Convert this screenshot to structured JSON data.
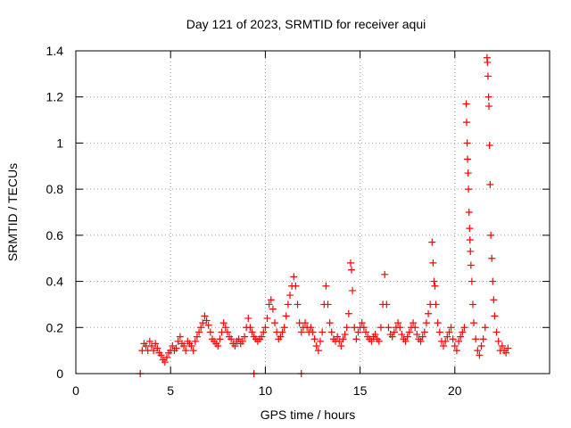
{
  "chart_data": {
    "type": "scatter",
    "title": "Day 121 of 2023, SRMTID for receiver aqui",
    "xlabel": "GPS time / hours",
    "ylabel": "SRMTID / TECUs",
    "xlim": [
      0,
      25
    ],
    "ylim": [
      0,
      1.4
    ],
    "xticks": [
      0,
      5,
      10,
      15,
      20
    ],
    "xtick_labels": [
      "0",
      "5",
      "10",
      "15",
      "20"
    ],
    "yticks": [
      0,
      0.2,
      0.4,
      0.6,
      0.8,
      1,
      1.2,
      1.4
    ],
    "ytick_labels": [
      "0",
      "0.2",
      "0.4",
      "0.6",
      "0.8",
      "1",
      "1.2",
      "1.4"
    ],
    "grid": true,
    "marker": "plus",
    "color": "#ff0000",
    "series": [
      {
        "name": "SRMTID",
        "points": [
          [
            3.4,
            0.0
          ],
          [
            9.4,
            0.0
          ],
          [
            11.9,
            0.0
          ],
          [
            3.5,
            0.1
          ],
          [
            3.6,
            0.13
          ],
          [
            3.7,
            0.12
          ],
          [
            3.8,
            0.1
          ],
          [
            3.9,
            0.14
          ],
          [
            4.0,
            0.12
          ],
          [
            4.1,
            0.1
          ],
          [
            4.2,
            0.13
          ],
          [
            4.3,
            0.11
          ],
          [
            4.4,
            0.09
          ],
          [
            4.5,
            0.08
          ],
          [
            4.6,
            0.06
          ],
          [
            4.7,
            0.05
          ],
          [
            4.8,
            0.07
          ],
          [
            4.9,
            0.09
          ],
          [
            5.0,
            0.1
          ],
          [
            5.1,
            0.12
          ],
          [
            5.2,
            0.1
          ],
          [
            5.3,
            0.11
          ],
          [
            5.4,
            0.14
          ],
          [
            5.5,
            0.16
          ],
          [
            5.6,
            0.13
          ],
          [
            5.7,
            0.12
          ],
          [
            5.8,
            0.1
          ],
          [
            5.9,
            0.14
          ],
          [
            6.0,
            0.13
          ],
          [
            6.1,
            0.12
          ],
          [
            6.2,
            0.1
          ],
          [
            6.3,
            0.14
          ],
          [
            6.4,
            0.16
          ],
          [
            6.5,
            0.18
          ],
          [
            6.6,
            0.2
          ],
          [
            6.7,
            0.22
          ],
          [
            6.8,
            0.25
          ],
          [
            6.9,
            0.23
          ],
          [
            7.0,
            0.21
          ],
          [
            7.1,
            0.18
          ],
          [
            7.2,
            0.15
          ],
          [
            7.3,
            0.14
          ],
          [
            7.4,
            0.13
          ],
          [
            7.5,
            0.12
          ],
          [
            7.6,
            0.15
          ],
          [
            7.7,
            0.18
          ],
          [
            7.8,
            0.22
          ],
          [
            7.9,
            0.2
          ],
          [
            8.0,
            0.18
          ],
          [
            8.1,
            0.16
          ],
          [
            8.2,
            0.15
          ],
          [
            8.3,
            0.13
          ],
          [
            8.4,
            0.12
          ],
          [
            8.5,
            0.14
          ],
          [
            8.6,
            0.15
          ],
          [
            8.7,
            0.13
          ],
          [
            8.8,
            0.14
          ],
          [
            8.9,
            0.16
          ],
          [
            9.0,
            0.2
          ],
          [
            9.1,
            0.24
          ],
          [
            9.2,
            0.2
          ],
          [
            9.3,
            0.18
          ],
          [
            9.4,
            0.16
          ],
          [
            9.5,
            0.15
          ],
          [
            9.6,
            0.14
          ],
          [
            9.7,
            0.15
          ],
          [
            9.8,
            0.16
          ],
          [
            9.9,
            0.18
          ],
          [
            10.0,
            0.2
          ],
          [
            10.1,
            0.24
          ],
          [
            10.2,
            0.3
          ],
          [
            10.3,
            0.32
          ],
          [
            10.4,
            0.28
          ],
          [
            10.5,
            0.22
          ],
          [
            10.6,
            0.18
          ],
          [
            10.7,
            0.15
          ],
          [
            10.8,
            0.16
          ],
          [
            10.9,
            0.18
          ],
          [
            11.0,
            0.2
          ],
          [
            11.1,
            0.25
          ],
          [
            11.2,
            0.3
          ],
          [
            11.3,
            0.34
          ],
          [
            11.4,
            0.38
          ],
          [
            11.5,
            0.42
          ],
          [
            11.6,
            0.38
          ],
          [
            11.7,
            0.3
          ],
          [
            11.8,
            0.22
          ],
          [
            11.9,
            0.18
          ],
          [
            12.0,
            0.2
          ],
          [
            12.1,
            0.22
          ],
          [
            12.2,
            0.2
          ],
          [
            12.3,
            0.18
          ],
          [
            12.4,
            0.2
          ],
          [
            12.5,
            0.18
          ],
          [
            12.6,
            0.15
          ],
          [
            12.7,
            0.12
          ],
          [
            12.8,
            0.1
          ],
          [
            12.9,
            0.14
          ],
          [
            13.0,
            0.18
          ],
          [
            13.1,
            0.3
          ],
          [
            13.2,
            0.38
          ],
          [
            13.3,
            0.3
          ],
          [
            13.4,
            0.22
          ],
          [
            13.5,
            0.18
          ],
          [
            13.6,
            0.15
          ],
          [
            13.7,
            0.14
          ],
          [
            13.8,
            0.16
          ],
          [
            13.9,
            0.14
          ],
          [
            14.0,
            0.12
          ],
          [
            14.1,
            0.15
          ],
          [
            14.2,
            0.17
          ],
          [
            14.3,
            0.2
          ],
          [
            14.4,
            0.26
          ],
          [
            14.5,
            0.48
          ],
          [
            14.55,
            0.45
          ],
          [
            14.6,
            0.36
          ],
          [
            14.7,
            0.2
          ],
          [
            14.8,
            0.15
          ],
          [
            14.9,
            0.18
          ],
          [
            15.0,
            0.2
          ],
          [
            15.1,
            0.22
          ],
          [
            15.2,
            0.2
          ],
          [
            15.3,
            0.18
          ],
          [
            15.4,
            0.16
          ],
          [
            15.5,
            0.15
          ],
          [
            15.6,
            0.14
          ],
          [
            15.7,
            0.16
          ],
          [
            15.8,
            0.17
          ],
          [
            15.9,
            0.15
          ],
          [
            16.0,
            0.14
          ],
          [
            16.1,
            0.2
          ],
          [
            16.2,
            0.3
          ],
          [
            16.3,
            0.43
          ],
          [
            16.4,
            0.3
          ],
          [
            16.5,
            0.2
          ],
          [
            16.6,
            0.17
          ],
          [
            16.7,
            0.16
          ],
          [
            16.8,
            0.18
          ],
          [
            16.9,
            0.2
          ],
          [
            17.0,
            0.22
          ],
          [
            17.1,
            0.2
          ],
          [
            17.2,
            0.17
          ],
          [
            17.3,
            0.15
          ],
          [
            17.4,
            0.14
          ],
          [
            17.5,
            0.16
          ],
          [
            17.6,
            0.18
          ],
          [
            17.7,
            0.2
          ],
          [
            17.8,
            0.22
          ],
          [
            17.9,
            0.2
          ],
          [
            18.0,
            0.17
          ],
          [
            18.1,
            0.15
          ],
          [
            18.2,
            0.14
          ],
          [
            18.3,
            0.16
          ],
          [
            18.4,
            0.18
          ],
          [
            18.5,
            0.22
          ],
          [
            18.6,
            0.26
          ],
          [
            18.7,
            0.3
          ],
          [
            18.8,
            0.57
          ],
          [
            18.85,
            0.48
          ],
          [
            18.9,
            0.4
          ],
          [
            18.95,
            0.38
          ],
          [
            19.0,
            0.3
          ],
          [
            19.1,
            0.22
          ],
          [
            19.2,
            0.18
          ],
          [
            19.3,
            0.14
          ],
          [
            19.4,
            0.12
          ],
          [
            19.5,
            0.14
          ],
          [
            19.6,
            0.16
          ],
          [
            19.7,
            0.18
          ],
          [
            19.8,
            0.2
          ],
          [
            19.9,
            0.15
          ],
          [
            20.0,
            0.12
          ],
          [
            20.1,
            0.1
          ],
          [
            20.2,
            0.14
          ],
          [
            20.3,
            0.16
          ],
          [
            20.4,
            0.18
          ],
          [
            20.5,
            0.2
          ],
          [
            20.6,
            1.17
          ],
          [
            20.62,
            1.09
          ],
          [
            20.65,
            1.0
          ],
          [
            20.67,
            0.93
          ],
          [
            20.7,
            0.87
          ],
          [
            20.72,
            0.8
          ],
          [
            20.75,
            0.7
          ],
          [
            20.78,
            0.63
          ],
          [
            20.8,
            0.58
          ],
          [
            20.82,
            0.53
          ],
          [
            20.85,
            0.47
          ],
          [
            20.9,
            0.4
          ],
          [
            20.95,
            0.3
          ],
          [
            21.0,
            0.22
          ],
          [
            21.1,
            0.15
          ],
          [
            21.2,
            0.1
          ],
          [
            21.3,
            0.08
          ],
          [
            21.4,
            0.12
          ],
          [
            21.5,
            0.15
          ],
          [
            21.6,
            0.2
          ],
          [
            21.7,
            1.37
          ],
          [
            21.72,
            1.35
          ],
          [
            21.75,
            1.29
          ],
          [
            21.78,
            1.2
          ],
          [
            21.8,
            1.16
          ],
          [
            21.83,
            0.99
          ],
          [
            21.86,
            0.82
          ],
          [
            21.9,
            0.6
          ],
          [
            21.95,
            0.5
          ],
          [
            22.0,
            0.4
          ],
          [
            22.05,
            0.32
          ],
          [
            22.1,
            0.25
          ],
          [
            22.2,
            0.18
          ],
          [
            22.3,
            0.14
          ],
          [
            22.4,
            0.1
          ],
          [
            22.5,
            0.12
          ],
          [
            22.6,
            0.1
          ],
          [
            22.7,
            0.09
          ],
          [
            22.8,
            0.11
          ]
        ]
      }
    ]
  }
}
